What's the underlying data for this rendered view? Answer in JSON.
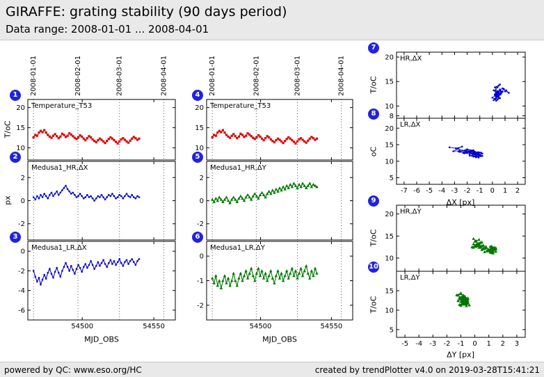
{
  "header": {
    "title": "GIRAFFE: grating stability (90 days period)",
    "subtitle": "Data range: 2008-01-01 ... 2008-04-01"
  },
  "footer": {
    "left": "powered by QC: www.eso.org/HC",
    "right": "created by trendPlotter v4.0 on 2019-03-28T15:41:21"
  },
  "colors": {
    "temperature": "#dd0000",
    "delta_x": "#0000cc",
    "delta_y": "#007700",
    "badge": "#2222dd",
    "band": "#e9e9e9"
  },
  "chart_data": {
    "type": "line",
    "x_series": {
      "name": "MJD_OBS",
      "values": [
        54466.0,
        54467.25,
        54468.5,
        54469.75,
        54471.0,
        54472.25,
        54473.5,
        54474.75,
        54476.0,
        54477.25,
        54478.5,
        54479.75,
        54481.0,
        54482.25,
        54483.5,
        54484.75,
        54486.0,
        54487.25,
        54488.5,
        54489.75,
        54491.0,
        54492.25,
        54493.5,
        54494.75,
        54496.0,
        54497.25,
        54498.5,
        54499.75,
        54501.0,
        54502.25,
        54503.5,
        54504.75,
        54506.0,
        54507.25,
        54508.5,
        54509.75,
        54511.0,
        54512.25,
        54513.5,
        54514.75,
        54516.0,
        54517.25,
        54518.5,
        54519.75,
        54521.0,
        54522.25,
        54523.5,
        54524.75,
        54526.0,
        54527.25,
        54528.5,
        54529.75,
        54531.0,
        54532.25,
        54533.5,
        54534.75,
        54536.0,
        54537.25,
        54538.5,
        54539.75
      ]
    },
    "series": {
      "temperature": {
        "label": "Temperature_T53",
        "color": "#dd0000",
        "marker": "square",
        "values": [
          12.6,
          13.2,
          13.0,
          13.8,
          14.2,
          13.9,
          14.4,
          13.8,
          13.2,
          12.8,
          12.5,
          13.0,
          13.4,
          12.9,
          12.4,
          12.8,
          13.5,
          13.2,
          12.7,
          13.0,
          13.6,
          13.3,
          12.9,
          12.5,
          12.2,
          12.6,
          13.1,
          12.8,
          12.3,
          11.9,
          12.4,
          12.9,
          12.6,
          12.1,
          11.7,
          11.4,
          11.9,
          12.3,
          12.0,
          11.6,
          11.2,
          11.7,
          12.2,
          12.6,
          12.3,
          11.9,
          11.5,
          11.1,
          11.6,
          12.1,
          12.4,
          12.0,
          11.6,
          11.3,
          11.8,
          12.3,
          12.7,
          12.4,
          12.0,
          12.3
        ]
      },
      "hr_dx": {
        "label": "Medusa1_HR,ΔX",
        "color": "#0000cc",
        "marker": "circle",
        "values": [
          0.3,
          0.1,
          0.4,
          0.2,
          0.5,
          0.3,
          0.6,
          0.4,
          0.2,
          0.5,
          0.7,
          0.4,
          0.6,
          0.8,
          0.5,
          0.7,
          0.9,
          1.1,
          1.3,
          1.0,
          0.8,
          0.6,
          0.7,
          0.5,
          0.3,
          0.4,
          0.6,
          0.4,
          0.2,
          0.3,
          0.5,
          0.3,
          0.4,
          0.2,
          0.0,
          0.2,
          0.4,
          0.3,
          0.5,
          0.3,
          0.1,
          0.3,
          0.5,
          0.4,
          0.6,
          0.4,
          0.2,
          0.3,
          0.5,
          0.4,
          0.2,
          0.4,
          0.6,
          0.4,
          0.3,
          0.5,
          0.3,
          0.2,
          0.4,
          0.3
        ]
      },
      "lr_dx": {
        "label": "Medusa1_LR,ΔX",
        "color": "#0000cc",
        "marker": "circle",
        "values": [
          -2.0,
          -2.6,
          -3.1,
          -2.7,
          -3.4,
          -2.9,
          -2.4,
          -2.8,
          -2.2,
          -1.8,
          -2.3,
          -2.7,
          -2.1,
          -1.7,
          -2.2,
          -2.6,
          -2.0,
          -1.6,
          -1.2,
          -1.6,
          -2.0,
          -1.5,
          -1.9,
          -2.3,
          -1.8,
          -1.4,
          -1.7,
          -2.1,
          -1.6,
          -1.3,
          -1.7,
          -1.4,
          -1.0,
          -1.4,
          -1.8,
          -1.5,
          -1.1,
          -1.5,
          -1.2,
          -0.9,
          -1.3,
          -1.6,
          -1.2,
          -0.9,
          -1.3,
          -1.0,
          -1.4,
          -1.1,
          -0.8,
          -1.2,
          -1.5,
          -1.1,
          -0.9,
          -1.3,
          -1.0,
          -0.8,
          -1.1,
          -1.4,
          -1.0,
          -0.8
        ]
      },
      "hr_dy": {
        "label": "Medusa1_HR,ΔY",
        "color": "#007700",
        "marker": "triangle",
        "values": [
          0.1,
          -0.1,
          0.2,
          0.0,
          0.3,
          0.1,
          -0.1,
          0.1,
          0.3,
          0.0,
          -0.2,
          0.1,
          0.3,
          0.1,
          -0.1,
          0.2,
          0.4,
          0.2,
          0.0,
          0.3,
          0.5,
          0.3,
          0.1,
          0.4,
          0.6,
          0.4,
          0.2,
          0.5,
          0.7,
          0.5,
          0.3,
          0.6,
          0.8,
          0.6,
          0.9,
          0.7,
          1.0,
          0.8,
          1.1,
          0.9,
          1.2,
          1.0,
          1.3,
          1.1,
          1.4,
          1.2,
          1.5,
          1.3,
          1.1,
          1.4,
          1.2,
          1.5,
          1.3,
          1.1,
          1.3,
          1.5,
          1.2,
          1.4,
          1.3,
          1.2
        ]
      },
      "lr_dy": {
        "label": "Medusa1_LR,ΔY",
        "color": "#007700",
        "marker": "triangle",
        "values": [
          -0.9,
          -1.1,
          -0.8,
          -1.2,
          -1.0,
          -1.3,
          -1.0,
          -0.8,
          -1.1,
          -0.9,
          -1.2,
          -1.0,
          -0.7,
          -1.0,
          -1.2,
          -0.9,
          -0.7,
          -1.0,
          -0.8,
          -0.6,
          -0.9,
          -0.7,
          -0.5,
          -0.8,
          -1.0,
          -0.7,
          -0.5,
          -0.8,
          -0.6,
          -0.9,
          -0.7,
          -1.0,
          -0.8,
          -0.6,
          -0.9,
          -1.1,
          -0.8,
          -0.6,
          -0.9,
          -0.7,
          -1.0,
          -0.8,
          -0.6,
          -0.9,
          -0.7,
          -0.5,
          -0.8,
          -0.6,
          -0.9,
          -0.7,
          -0.5,
          -0.8,
          -0.6,
          -0.4,
          -0.7,
          -0.9,
          -0.6,
          -0.8,
          -0.5,
          -0.7
        ]
      }
    },
    "time_axis": {
      "label": "MJD_OBS",
      "range": [
        54462,
        54565
      ],
      "ticks": [
        54500,
        54550
      ]
    },
    "date_gridlines": [
      {
        "label": "2008-01-01",
        "mjd": 54466
      },
      {
        "label": "2008-02-01",
        "mjd": 54497
      },
      {
        "label": "2008-03-01",
        "mjd": 54526
      },
      {
        "label": "2008-04-01",
        "mjd": 54557
      }
    ],
    "scatter_groups": [
      {
        "xlabel": "ΔX [px]",
        "xrange": [
          -7.6,
          2.6
        ],
        "xticks": [
          -7,
          -6,
          -5,
          -4,
          -3,
          -2,
          -1,
          0,
          1,
          2
        ]
      },
      {
        "xlabel": "ΔY [px]",
        "xrange": [
          -5.6,
          3.6
        ],
        "xticks": [
          -5,
          -4,
          -3,
          -2,
          -1,
          0,
          1,
          2,
          3
        ]
      }
    ],
    "panels": [
      {
        "n": 1,
        "col": "left",
        "row": 0,
        "kind": "time",
        "title": "Temperature_T53",
        "series": "temperature",
        "ylabel": "T/oC",
        "yrange": [
          7,
          22
        ],
        "yticks": [
          10,
          15,
          20
        ]
      },
      {
        "n": 2,
        "col": "left",
        "row": 1,
        "kind": "time",
        "title": "Medusa1_HR,ΔX",
        "series": "hr_dx",
        "ylabel": "px",
        "yrange": [
          -3.4,
          3.4
        ],
        "yticks": [
          -2,
          0,
          2
        ]
      },
      {
        "n": 3,
        "col": "left",
        "row": 2,
        "kind": "time",
        "title": "Medusa1_LR,ΔX",
        "series": "lr_dx",
        "ylabel": "",
        "yrange": [
          -7,
          1
        ],
        "yticks": [
          -6,
          -4,
          -2,
          0
        ]
      },
      {
        "n": 4,
        "col": "mid",
        "row": 0,
        "kind": "time",
        "title": "Temperature_T53",
        "series": "temperature",
        "ylabel": "",
        "yrange": [
          7,
          22
        ],
        "yticks": [
          10,
          15,
          20
        ]
      },
      {
        "n": 5,
        "col": "mid",
        "row": 1,
        "kind": "time",
        "title": "Medusa1_HR,ΔY",
        "series": "hr_dy",
        "ylabel": "",
        "yrange": [
          -3.4,
          3.4
        ],
        "yticks": [
          -2,
          0,
          2
        ]
      },
      {
        "n": 6,
        "col": "mid",
        "row": 2,
        "kind": "time",
        "title": "Medusa1_LR,ΔY",
        "series": "lr_dy",
        "ylabel": "",
        "yrange": [
          -2.6,
          0.6
        ],
        "yticks": [
          -2,
          -1,
          0
        ]
      },
      {
        "n": 7,
        "col": "right",
        "group": 0,
        "row": 0,
        "kind": "scatter",
        "title": "HR,ΔX",
        "xkey": "hr_dx",
        "ykey": "temperature",
        "ylabel": "T/oC",
        "yrange": [
          7.5,
          21
        ],
        "yticks": [
          8,
          10,
          15,
          20
        ]
      },
      {
        "n": 8,
        "col": "right",
        "group": 0,
        "row": 1,
        "kind": "scatter",
        "title": "LR,ΔX",
        "xkey": "lr_dx",
        "ykey": "temperature",
        "ylabel": "oC",
        "yrange": [
          3,
          23
        ],
        "yticks": [
          5,
          10,
          15,
          20
        ]
      },
      {
        "n": 9,
        "col": "right",
        "group": 1,
        "row": 0,
        "kind": "scatter",
        "title": "HR,ΔY",
        "xkey": "hr_dy",
        "ykey": "temperature",
        "ylabel": "T/oC",
        "yrange": [
          7,
          22
        ],
        "yticks": [
          10,
          15,
          20
        ]
      },
      {
        "n": 10,
        "col": "right",
        "group": 1,
        "row": 1,
        "kind": "scatter",
        "title": "LR,ΔY",
        "xkey": "lr_dy",
        "ykey": "temperature",
        "ylabel": "T/oC",
        "yrange": [
          3,
          20
        ],
        "yticks": [
          5,
          10,
          15
        ]
      }
    ]
  }
}
